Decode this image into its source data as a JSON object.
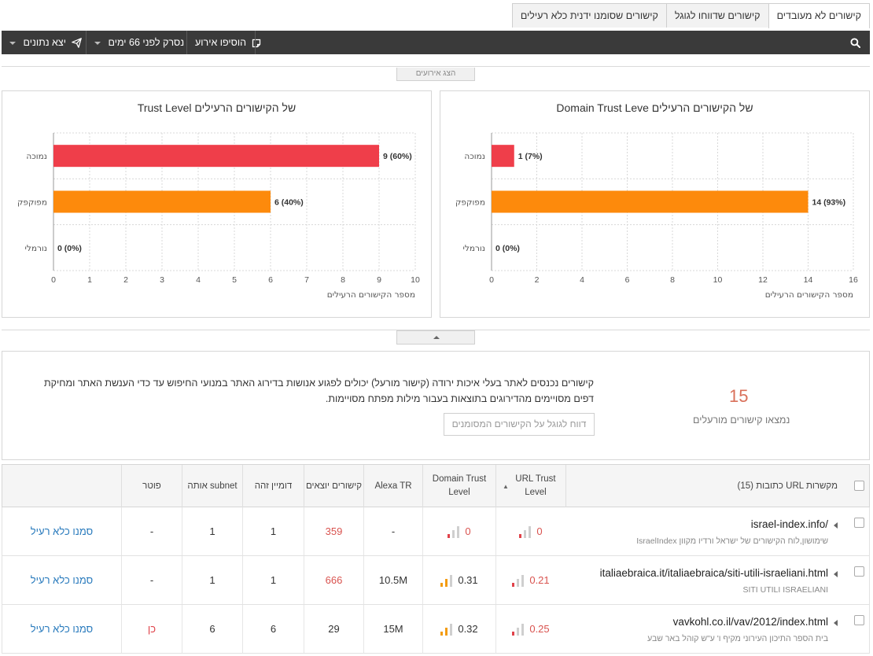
{
  "tabs": [
    {
      "label": "קישורים לא מעובדים",
      "active": true
    },
    {
      "label": "קישורים שדווחו לגוגל",
      "active": false
    },
    {
      "label": "קישורים שסומנו ידנית כלא רעילים",
      "active": false
    }
  ],
  "toolbar": {
    "export_label": "יצא נתונים",
    "scanned_label": "נסרק לפני 66 ימים",
    "add_event_label": "הוסיפו אירוע"
  },
  "show_events_label": "הצג אירועים",
  "chart_data": [
    {
      "type": "bar",
      "orientation": "horizontal",
      "title": "Domain Trust Leve של הקישורים הרעילים",
      "categories": [
        "נמוכה",
        "מפוקפק",
        "נורמלי"
      ],
      "values": [
        1,
        14,
        0
      ],
      "value_labels": [
        "1 (7%)",
        "14 (93%)",
        "0 (0%)"
      ],
      "colors": [
        "#ef3e4a",
        "#fd8a0c",
        "#cccccc"
      ],
      "xlabel": "מספר הקישורים הרעילים",
      "xlim": [
        0,
        16
      ],
      "xticks": [
        "0",
        "2",
        "4",
        "6",
        "8",
        "10",
        "12",
        "14",
        "16"
      ],
      "grid": true
    },
    {
      "type": "bar",
      "orientation": "horizontal",
      "title": "Trust Level של הקישורים הרעילים",
      "categories": [
        "נמוכה",
        "מפוקפק",
        "נורמלי"
      ],
      "values": [
        9,
        6,
        0
      ],
      "value_labels": [
        "9 (60%)",
        "6 (40%)",
        "0 (0%)"
      ],
      "colors": [
        "#ef3e4a",
        "#fd8a0c",
        "#cccccc"
      ],
      "xlabel": "מספר הקישורים הרעילים",
      "xlim": [
        0,
        10
      ],
      "xticks": [
        "0",
        "1",
        "2",
        "3",
        "4",
        "5",
        "6",
        "7",
        "8",
        "9",
        "10"
      ],
      "grid": true
    }
  ],
  "info": {
    "count": "15",
    "count_label": "נמצאו קישורים מורעלים",
    "text": "קישורים נכנסים לאתר בעלי איכות ירודה (קישור מורעל) יכולים לפגוע אנושות בדירוג האתר במנועי החיפוש עד כדי הענשת האתר ומחיקת דפים מסויימים מהדירוגים בתוצאות בעבור מילות מפתח מסויימות.",
    "report_button": "דווח לגוגל על הקישורים המסומנים"
  },
  "table": {
    "headers": {
      "urls": "(15) כתובות URL מקשרות",
      "url_trust": "URL Trust Level",
      "domain_trust": "Domain Trust Level",
      "alexa": "Alexa TR",
      "outgoing": "קישורים יוצאים",
      "same_domain": "דומיין זהה",
      "same_subnet": "אותה subnet",
      "exempt": "פוטר",
      "action": ""
    },
    "rows": [
      {
        "url": "israel-index.info/",
        "title": "שימושון,לוח הקישורים של ישראל ורדיו מקוון IsraelIndex",
        "url_trust": "0",
        "domain_trust": "0",
        "alexa": "-",
        "outgoing": "359",
        "same_domain": "1",
        "same_subnet": "1",
        "exempt": "-",
        "action": "סמנו כלא רעיל"
      },
      {
        "url": "italiaebraica.it/italiaebraica/siti-utili-israeliani.html",
        "title": "SITI UTILI ISRAELIANI",
        "url_trust": "0.21",
        "domain_trust": "0.31",
        "alexa": "10.5M",
        "outgoing": "666",
        "same_domain": "1",
        "same_subnet": "1",
        "exempt": "-",
        "action": "סמנו כלא רעיל"
      },
      {
        "url": "vavkohl.co.il/vav/2012/index.html",
        "title": "בית הספר התיכון העירוני מקיף ו' ע\"ש קוהל באר שבע",
        "url_trust": "0.25",
        "domain_trust": "0.32",
        "alexa": "15M",
        "outgoing": "29",
        "same_domain": "6",
        "same_subnet": "6",
        "exempt": "כן",
        "action": "סמנו כלא רעיל"
      }
    ]
  }
}
